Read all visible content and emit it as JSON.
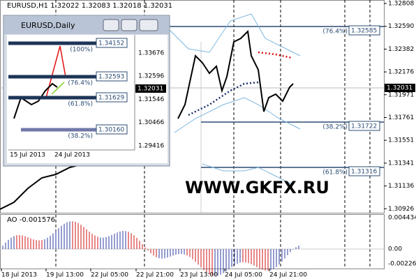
{
  "main": {
    "header": "EURUSD,H1  1.32022 1.32083 1.32018 1.32031",
    "price_axis": [
      "1.32808",
      "1.32590",
      "1.32382",
      "1.32176",
      "1.31971",
      "1.31761",
      "1.31551",
      "1.31341",
      "1.31136",
      "1.30926"
    ],
    "current_price": "1.32031",
    "fib_levels": [
      {
        "percent": "(76.4%)",
        "price": "1.32585"
      },
      {
        "percent": "(38.2%)",
        "price": "1.31722"
      },
      {
        "percent": "(61.8%)",
        "price": "1.31316"
      }
    ],
    "watermark": "WWW.GKFX.RU",
    "time_axis": [
      "18 Jul 2013",
      "19 Jul 13:00",
      "22 Jul 05:00",
      "22 Jul 21:00",
      "23 Jul 13:00",
      "24 Jul 05:00",
      "24 Jul 21:00"
    ]
  },
  "indicator": {
    "label": "AO -0.001576",
    "axis": [
      "0.004434",
      "0.00",
      "-0.00226"
    ]
  },
  "inset": {
    "title": "EURUSD,Daily",
    "price_axis": [
      "1.33676",
      "1.32596",
      "1.31546",
      "1.30466",
      "1.29416"
    ],
    "current_price": "1.32031",
    "fib_levels": [
      {
        "percent": "(100%)",
        "price": "1.34152"
      },
      {
        "percent": "(76.4%)",
        "price": "1.32593"
      },
      {
        "percent": "(61.8%)",
        "price": "1.31629"
      },
      {
        "percent": "(38.2%)",
        "price": "1.30160"
      }
    ],
    "time_axis": [
      "15 Jul 2013",
      "24 Jul 2013"
    ]
  }
}
